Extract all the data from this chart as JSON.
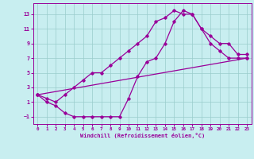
{
  "line1_x": [
    0,
    1,
    2,
    3,
    4,
    5,
    6,
    7,
    8,
    9,
    10,
    11,
    12,
    13,
    14,
    15,
    16,
    17,
    18,
    19,
    20,
    21,
    22,
    23
  ],
  "line1_y": [
    2,
    1.5,
    1,
    2,
    3,
    4,
    5,
    5,
    6,
    7,
    8,
    9,
    10,
    12,
    12.5,
    13.5,
    13,
    13,
    11,
    9,
    8,
    7,
    7,
    7
  ],
  "line2_x": [
    0,
    1,
    2,
    3,
    4,
    5,
    6,
    7,
    8,
    9,
    10,
    11,
    12,
    13,
    14,
    15,
    16,
    17,
    18,
    19,
    20,
    21,
    22,
    23
  ],
  "line2_y": [
    2,
    1,
    0.5,
    -0.5,
    -1,
    -1,
    -1,
    -1,
    -1,
    -1,
    1.5,
    4.5,
    6.5,
    7,
    9,
    12,
    13.5,
    13,
    11,
    10,
    9,
    9,
    7.5,
    7.5
  ],
  "line3_x": [
    0,
    23
  ],
  "line3_y": [
    2,
    7
  ],
  "xlim": [
    -0.5,
    23.5
  ],
  "ylim": [
    -2,
    14.5
  ],
  "xticks": [
    0,
    1,
    2,
    3,
    4,
    5,
    6,
    7,
    8,
    9,
    10,
    11,
    12,
    13,
    14,
    15,
    16,
    17,
    18,
    19,
    20,
    21,
    22,
    23
  ],
  "yticks": [
    -1,
    1,
    3,
    5,
    7,
    9,
    11,
    13
  ],
  "xlabel": "Windchill (Refroidissement éolien,°C)",
  "line_color": "#990099",
  "bg_color": "#c8eef0",
  "grid_color": "#99cccc",
  "marker": "D",
  "marker_size": 1.8,
  "linewidth": 0.9
}
